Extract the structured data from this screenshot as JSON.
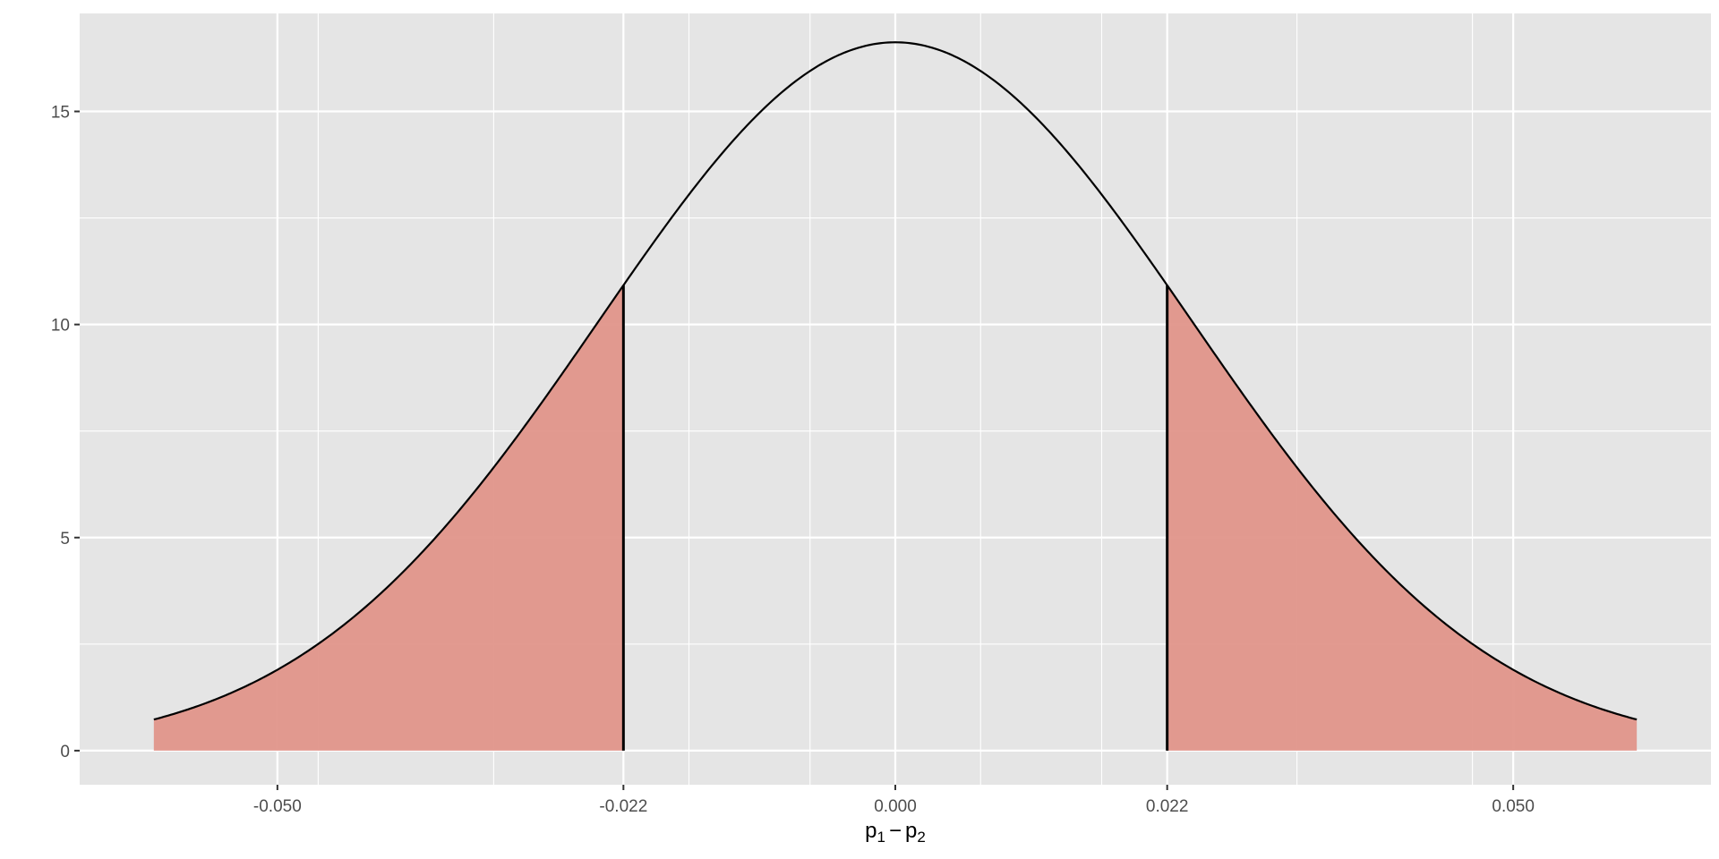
{
  "chart_data": {
    "type": "area",
    "title": "",
    "distribution": "normal",
    "mean": 0,
    "sd": 0.024,
    "x_range": [
      -0.06,
      0.06
    ],
    "xlim": [
      -0.066,
      0.066
    ],
    "ylim": [
      -0.8,
      17.3
    ],
    "xlabel": {
      "base1": "p",
      "sub1": "1",
      "operator": "−",
      "base2": "p",
      "sub2": "2"
    },
    "ylabel": "",
    "x_ticks": [
      {
        "value": -0.05,
        "label": "-0.050"
      },
      {
        "value": -0.022,
        "label": "-0.022"
      },
      {
        "value": 0,
        "label": "0.000"
      },
      {
        "value": 0.022,
        "label": "0.022"
      },
      {
        "value": 0.05,
        "label": "0.050"
      }
    ],
    "x_minor_gridlines": [
      -0.0467,
      -0.0325,
      -0.0167,
      -0.0069,
      0.0069,
      0.0167,
      0.0325,
      0.0467
    ],
    "y_ticks": [
      {
        "value": 0,
        "label": "0"
      },
      {
        "value": 5,
        "label": "5"
      },
      {
        "value": 10,
        "label": "10"
      },
      {
        "value": 15,
        "label": "15"
      }
    ],
    "y_minor_gridlines": [
      2.5,
      7.5,
      12.5
    ],
    "critical_values": [
      -0.022,
      0.022
    ],
    "shaded_regions": [
      {
        "from": -0.06,
        "to": -0.022
      },
      {
        "from": 0.022,
        "to": 0.06
      }
    ],
    "grid": true,
    "legend": "none",
    "colors": {
      "panel": "#e5e5e5",
      "gridline": "#ffffff",
      "curve": "#000000",
      "shade": "#e0958a",
      "tick_label": "#4d4d4d"
    }
  }
}
